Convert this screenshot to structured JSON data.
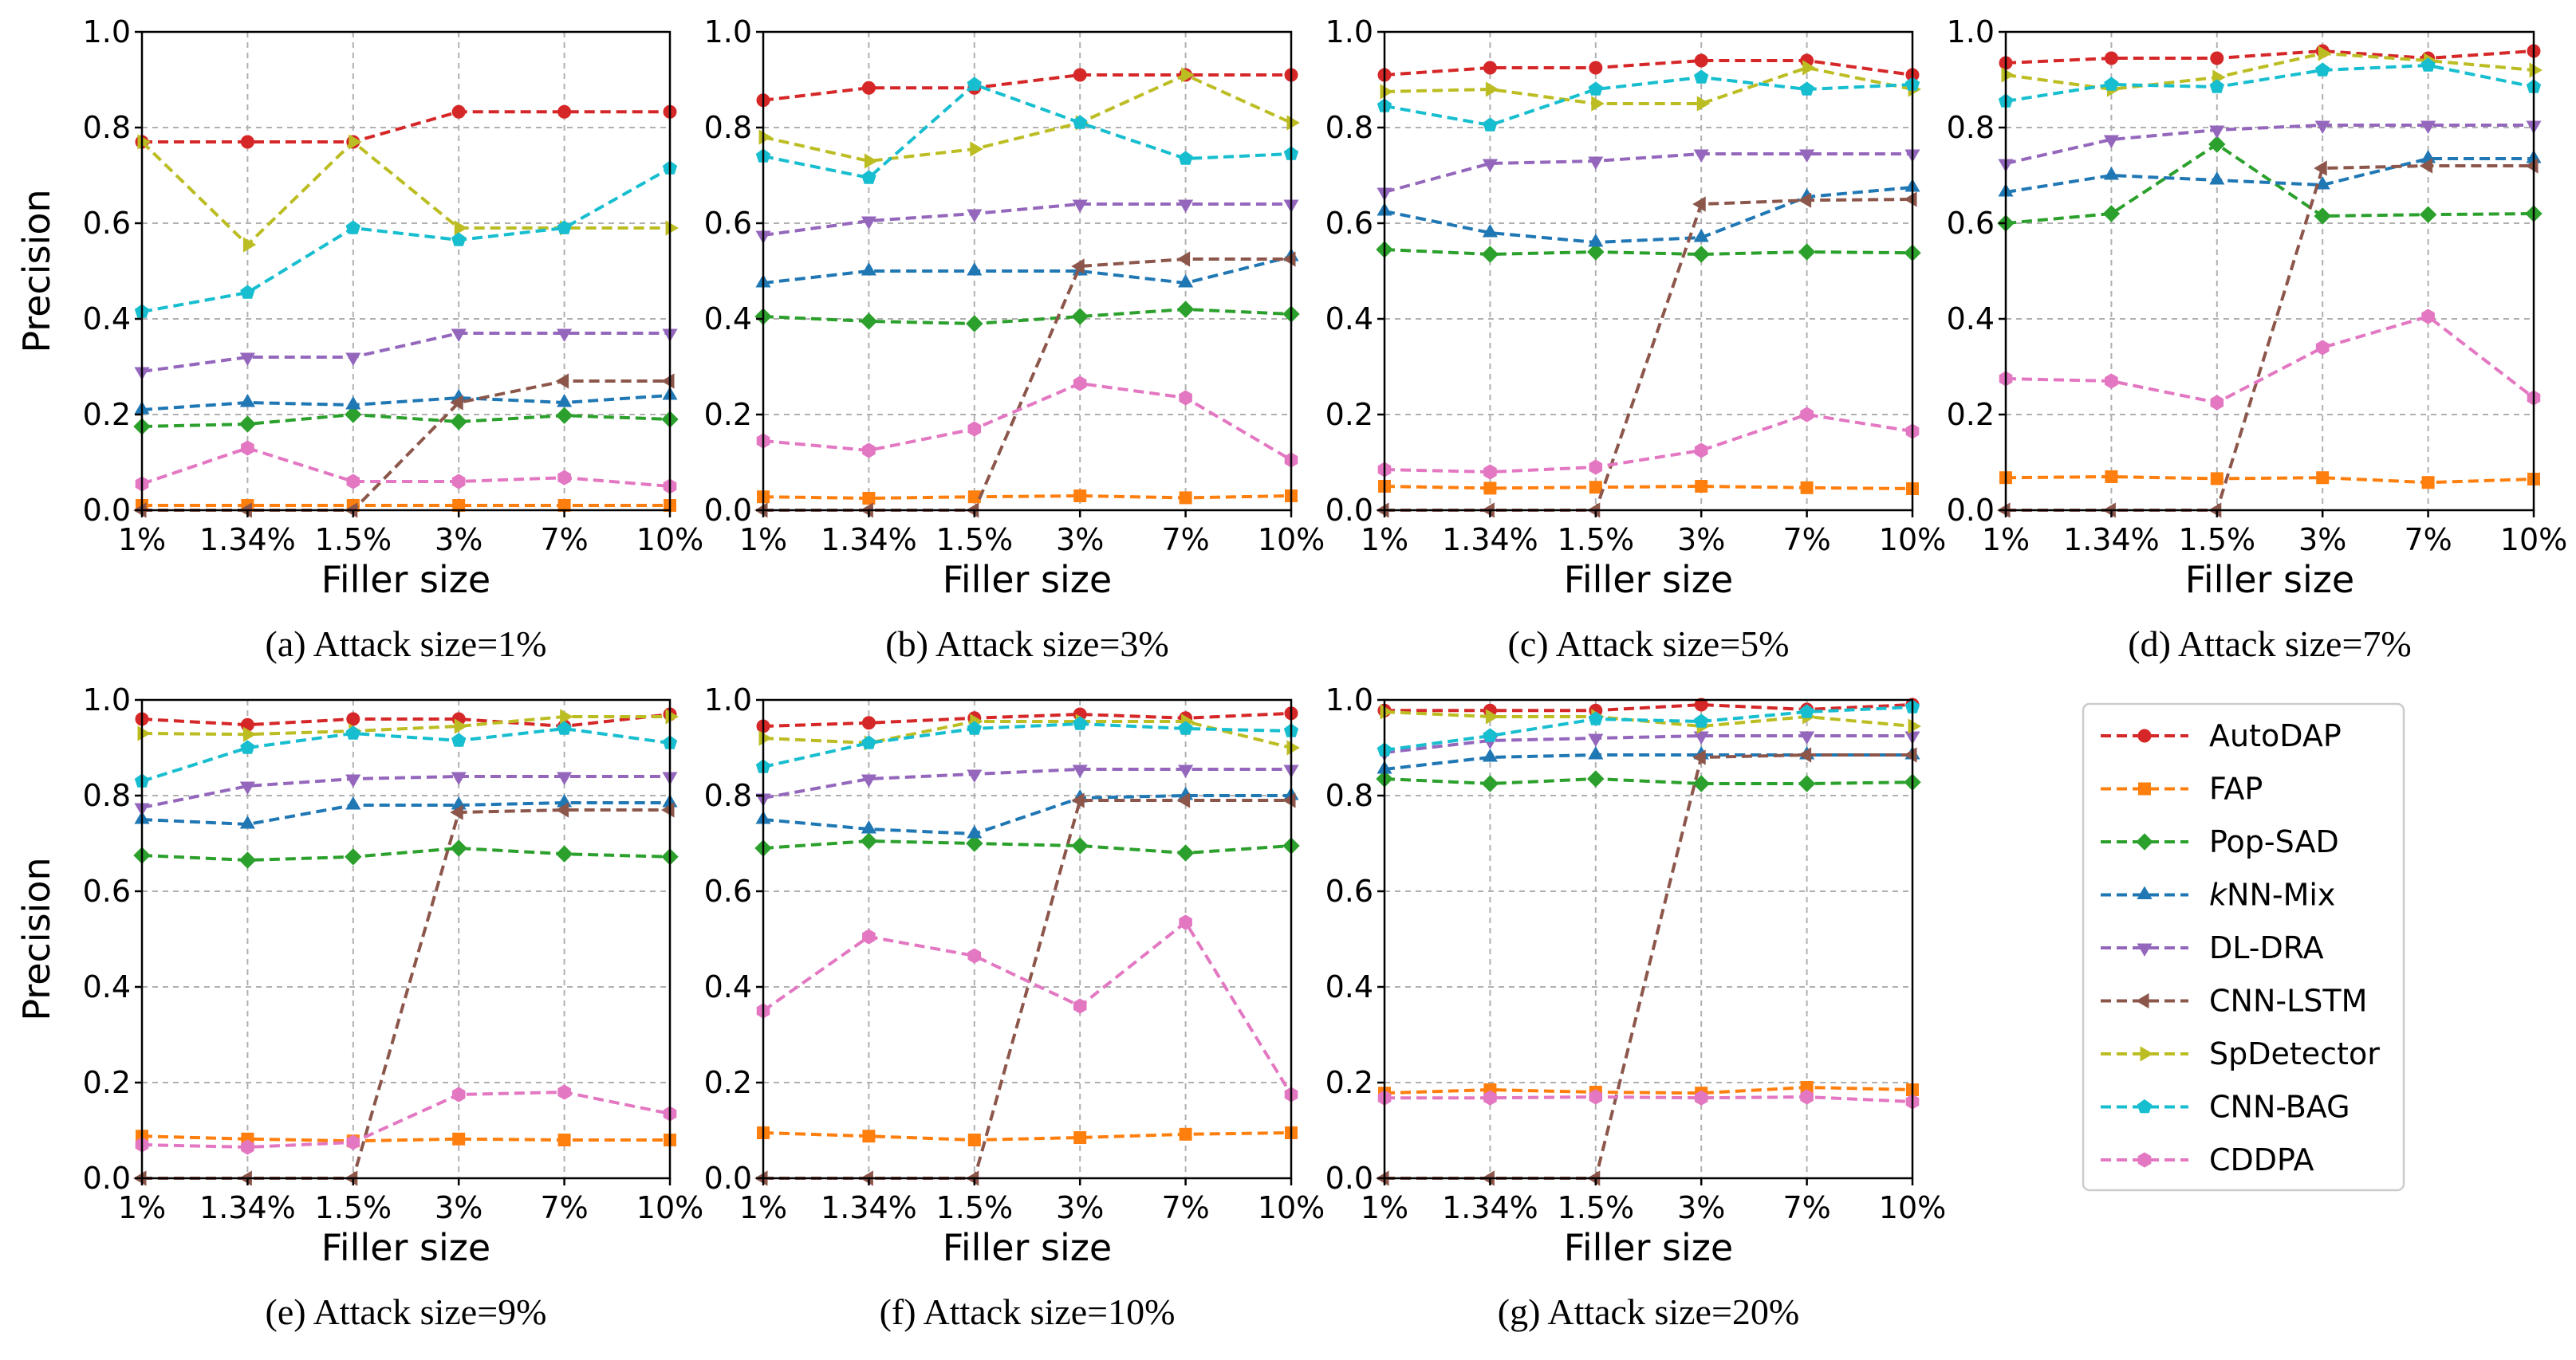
{
  "chart_data": {
    "type": "line",
    "x_tick_labels": [
      "1%",
      "1.34%",
      "1.5%",
      "3%",
      "7%",
      "10%"
    ],
    "y_tick_labels": [
      "0.0",
      "0.2",
      "0.4",
      "0.6",
      "0.8",
      "1.0"
    ],
    "ylim": [
      0,
      1
    ],
    "xlabel": "Filler size",
    "ylabel": "Precision",
    "grid": true,
    "legend_position": "bottom-right panel",
    "legend": [
      {
        "name": "AutoDAP",
        "color": "#d62728",
        "marker": "circle"
      },
      {
        "name": "FAP",
        "color": "#ff7f0e",
        "marker": "square"
      },
      {
        "name": "Pop-SAD",
        "color": "#2ca02c",
        "marker": "diamond"
      },
      {
        "name": "kNN-Mix",
        "color": "#1f77b4",
        "marker": "triangle-up"
      },
      {
        "name": "DL-DRA",
        "color": "#9467bd",
        "marker": "triangle-down"
      },
      {
        "name": "CNN-LSTM",
        "color": "#8c564b",
        "marker": "triangle-left"
      },
      {
        "name": "SpDetector",
        "color": "#bcbd22",
        "marker": "triangle-right"
      },
      {
        "name": "CNN-BAG",
        "color": "#17becf",
        "marker": "pentagon"
      },
      {
        "name": "CDDPA",
        "color": "#e377c2",
        "marker": "hexagon"
      }
    ],
    "panels": [
      {
        "caption": "(a) Attack size=1%",
        "series": [
          {
            "name": "AutoDAP",
            "values": [
              0.77,
              0.77,
              0.77,
              0.833,
              0.833,
              0.833
            ]
          },
          {
            "name": "FAP",
            "values": [
              0.01,
              0.01,
              0.01,
              0.01,
              0.01,
              0.01
            ]
          },
          {
            "name": "Pop-SAD",
            "values": [
              0.175,
              0.18,
              0.2,
              0.185,
              0.198,
              0.19
            ]
          },
          {
            "name": "kNN-Mix",
            "values": [
              0.21,
              0.225,
              0.22,
              0.235,
              0.225,
              0.24
            ]
          },
          {
            "name": "DL-DRA",
            "values": [
              0.29,
              0.32,
              0.32,
              0.37,
              0.37,
              0.37
            ]
          },
          {
            "name": "CNN-LSTM",
            "values": [
              0,
              0,
              0,
              0.225,
              0.27,
              0.27
            ]
          },
          {
            "name": "SpDetector",
            "values": [
              0.77,
              0.555,
              0.77,
              0.59,
              0.59,
              0.59
            ]
          },
          {
            "name": "CNN-BAG",
            "values": [
              0.415,
              0.455,
              0.59,
              0.565,
              0.59,
              0.715
            ]
          },
          {
            "name": "CDDPA",
            "values": [
              0.055,
              0.13,
              0.06,
              0.06,
              0.068,
              0.05
            ]
          }
        ]
      },
      {
        "caption": "(b) Attack size=3%",
        "series": [
          {
            "name": "AutoDAP",
            "values": [
              0.857,
              0.883,
              0.883,
              0.91,
              0.91,
              0.91
            ]
          },
          {
            "name": "FAP",
            "values": [
              0.028,
              0.025,
              0.028,
              0.03,
              0.026,
              0.03
            ]
          },
          {
            "name": "Pop-SAD",
            "values": [
              0.405,
              0.395,
              0.39,
              0.405,
              0.42,
              0.41
            ]
          },
          {
            "name": "kNN-Mix",
            "values": [
              0.475,
              0.5,
              0.5,
              0.5,
              0.475,
              0.53
            ]
          },
          {
            "name": "DL-DRA",
            "values": [
              0.575,
              0.605,
              0.62,
              0.64,
              0.64,
              0.64
            ]
          },
          {
            "name": "CNN-LSTM",
            "values": [
              0,
              0,
              0,
              0.51,
              0.525,
              0.525
            ]
          },
          {
            "name": "SpDetector",
            "values": [
              0.78,
              0.73,
              0.755,
              0.81,
              0.91,
              0.81
            ]
          },
          {
            "name": "CNN-BAG",
            "values": [
              0.74,
              0.695,
              0.89,
              0.81,
              0.735,
              0.745
            ]
          },
          {
            "name": "CDDPA",
            "values": [
              0.145,
              0.125,
              0.17,
              0.265,
              0.235,
              0.105
            ]
          }
        ]
      },
      {
        "caption": "(c) Attack size=5%",
        "series": [
          {
            "name": "AutoDAP",
            "values": [
              0.91,
              0.925,
              0.925,
              0.94,
              0.94,
              0.91
            ]
          },
          {
            "name": "FAP",
            "values": [
              0.05,
              0.046,
              0.048,
              0.05,
              0.047,
              0.045
            ]
          },
          {
            "name": "Pop-SAD",
            "values": [
              0.545,
              0.535,
              0.54,
              0.535,
              0.54,
              0.538
            ]
          },
          {
            "name": "kNN-Mix",
            "values": [
              0.625,
              0.58,
              0.56,
              0.57,
              0.655,
              0.675
            ]
          },
          {
            "name": "DL-DRA",
            "values": [
              0.665,
              0.725,
              0.73,
              0.745,
              0.745,
              0.745
            ]
          },
          {
            "name": "CNN-LSTM",
            "values": [
              0,
              0,
              0,
              0.64,
              0.648,
              0.65
            ]
          },
          {
            "name": "SpDetector",
            "values": [
              0.875,
              0.88,
              0.85,
              0.85,
              0.925,
              0.88
            ]
          },
          {
            "name": "CNN-BAG",
            "values": [
              0.845,
              0.805,
              0.88,
              0.905,
              0.88,
              0.89
            ]
          },
          {
            "name": "CDDPA",
            "values": [
              0.085,
              0.08,
              0.09,
              0.125,
              0.2,
              0.165
            ]
          }
        ]
      },
      {
        "caption": "(d) Attack size=7%",
        "series": [
          {
            "name": "AutoDAP",
            "values": [
              0.935,
              0.945,
              0.945,
              0.96,
              0.945,
              0.96
            ]
          },
          {
            "name": "FAP",
            "values": [
              0.068,
              0.07,
              0.066,
              0.068,
              0.058,
              0.065
            ]
          },
          {
            "name": "Pop-SAD",
            "values": [
              0.6,
              0.62,
              0.765,
              0.615,
              0.618,
              0.62
            ]
          },
          {
            "name": "kNN-Mix",
            "values": [
              0.665,
              0.7,
              0.69,
              0.68,
              0.735,
              0.735
            ]
          },
          {
            "name": "DL-DRA",
            "values": [
              0.725,
              0.775,
              0.795,
              0.805,
              0.805,
              0.805
            ]
          },
          {
            "name": "CNN-LSTM",
            "values": [
              0,
              0,
              0,
              0.715,
              0.72,
              0.72
            ]
          },
          {
            "name": "SpDetector",
            "values": [
              0.91,
              0.88,
              0.905,
              0.955,
              0.94,
              0.92
            ]
          },
          {
            "name": "CNN-BAG",
            "values": [
              0.855,
              0.89,
              0.885,
              0.92,
              0.93,
              0.885
            ]
          },
          {
            "name": "CDDPA",
            "values": [
              0.275,
              0.27,
              0.225,
              0.34,
              0.405,
              0.235
            ]
          }
        ]
      },
      {
        "caption": "(e) Attack size=9%",
        "series": [
          {
            "name": "AutoDAP",
            "values": [
              0.96,
              0.948,
              0.96,
              0.96,
              0.945,
              0.97
            ]
          },
          {
            "name": "FAP",
            "values": [
              0.088,
              0.082,
              0.078,
              0.082,
              0.08,
              0.08
            ]
          },
          {
            "name": "Pop-SAD",
            "values": [
              0.675,
              0.665,
              0.672,
              0.69,
              0.678,
              0.672
            ]
          },
          {
            "name": "kNN-Mix",
            "values": [
              0.75,
              0.74,
              0.78,
              0.78,
              0.785,
              0.785
            ]
          },
          {
            "name": "DL-DRA",
            "values": [
              0.775,
              0.82,
              0.835,
              0.84,
              0.84,
              0.84
            ]
          },
          {
            "name": "CNN-LSTM",
            "values": [
              0,
              0,
              0,
              0.765,
              0.77,
              0.77
            ]
          },
          {
            "name": "SpDetector",
            "values": [
              0.93,
              0.928,
              0.935,
              0.945,
              0.965,
              0.965
            ]
          },
          {
            "name": "CNN-BAG",
            "values": [
              0.83,
              0.9,
              0.93,
              0.915,
              0.94,
              0.91
            ]
          },
          {
            "name": "CDDPA",
            "values": [
              0.07,
              0.065,
              0.075,
              0.175,
              0.18,
              0.135
            ]
          }
        ]
      },
      {
        "caption": "(f) Attack size=10%",
        "series": [
          {
            "name": "AutoDAP",
            "values": [
              0.945,
              0.952,
              0.962,
              0.97,
              0.962,
              0.972
            ]
          },
          {
            "name": "FAP",
            "values": [
              0.095,
              0.088,
              0.08,
              0.085,
              0.092,
              0.095
            ]
          },
          {
            "name": "Pop-SAD",
            "values": [
              0.69,
              0.705,
              0.7,
              0.695,
              0.68,
              0.695
            ]
          },
          {
            "name": "kNN-Mix",
            "values": [
              0.75,
              0.73,
              0.72,
              0.795,
              0.8,
              0.8
            ]
          },
          {
            "name": "DL-DRA",
            "values": [
              0.795,
              0.835,
              0.845,
              0.855,
              0.855,
              0.855
            ]
          },
          {
            "name": "CNN-LSTM",
            "values": [
              0,
              0,
              0,
              0.79,
              0.79,
              0.79
            ]
          },
          {
            "name": "SpDetector",
            "values": [
              0.92,
              0.91,
              0.955,
              0.955,
              0.955,
              0.9
            ]
          },
          {
            "name": "CNN-BAG",
            "values": [
              0.86,
              0.91,
              0.94,
              0.95,
              0.94,
              0.935
            ]
          },
          {
            "name": "CDDPA",
            "values": [
              0.35,
              0.505,
              0.465,
              0.36,
              0.535,
              0.175
            ]
          }
        ]
      },
      {
        "caption": "(g) Attack size=20%",
        "series": [
          {
            "name": "AutoDAP",
            "values": [
              0.978,
              0.978,
              0.978,
              0.99,
              0.98,
              0.99
            ]
          },
          {
            "name": "FAP",
            "values": [
              0.178,
              0.185,
              0.18,
              0.178,
              0.19,
              0.185
            ]
          },
          {
            "name": "Pop-SAD",
            "values": [
              0.835,
              0.825,
              0.835,
              0.825,
              0.825,
              0.828
            ]
          },
          {
            "name": "kNN-Mix",
            "values": [
              0.855,
              0.88,
              0.885,
              0.885,
              0.885,
              0.885
            ]
          },
          {
            "name": "DL-DRA",
            "values": [
              0.89,
              0.915,
              0.92,
              0.925,
              0.925,
              0.925
            ]
          },
          {
            "name": "CNN-LSTM",
            "values": [
              0,
              0,
              0,
              0.88,
              0.885,
              0.885
            ]
          },
          {
            "name": "SpDetector",
            "values": [
              0.975,
              0.965,
              0.965,
              0.945,
              0.965,
              0.945
            ]
          },
          {
            "name": "CNN-BAG",
            "values": [
              0.895,
              0.925,
              0.96,
              0.955,
              0.975,
              0.985
            ]
          },
          {
            "name": "CDDPA",
            "values": [
              0.168,
              0.168,
              0.17,
              0.168,
              0.17,
              0.16
            ]
          }
        ]
      }
    ]
  }
}
